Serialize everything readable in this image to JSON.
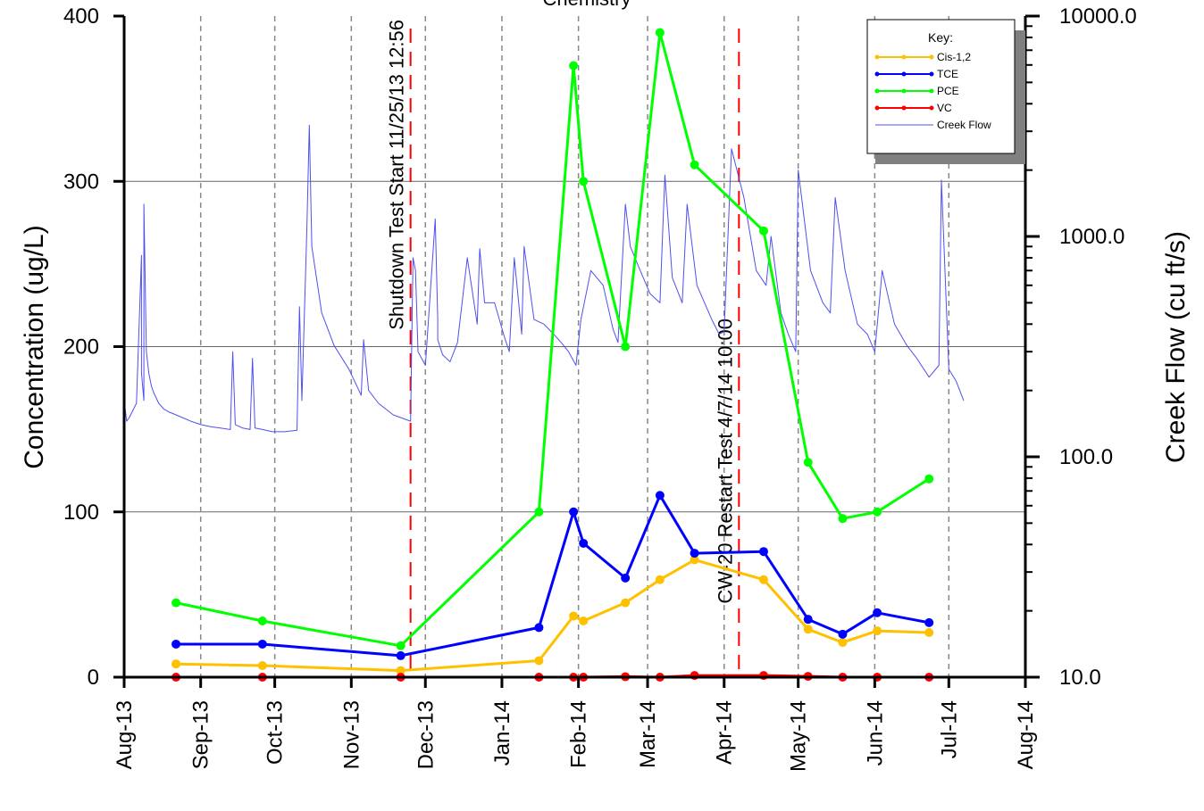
{
  "chart_data": {
    "type": "line",
    "title": "Chemistry",
    "xlabel": "",
    "ylabel": "Concentration (ug/L)",
    "y2label": "Creek Flow (cu ft/s)",
    "xlim": [
      "2013-08-01",
      "2014-08-01"
    ],
    "ylim": [
      0,
      400
    ],
    "y2lim": [
      10,
      10000
    ],
    "y2scale": "log",
    "xticks": [
      "Aug-13",
      "Sep-13",
      "Oct-13",
      "Nov-13",
      "Dec-13",
      "Jan-14",
      "Feb-14",
      "Mar-14",
      "Apr-14",
      "May-14",
      "Jun-14",
      "Jul-14",
      "Aug-14"
    ],
    "xtick_dates": [
      "2013-08-01",
      "2013-09-01",
      "2013-10-01",
      "2013-11-01",
      "2013-12-01",
      "2014-01-01",
      "2014-02-01",
      "2014-03-01",
      "2014-04-01",
      "2014-05-01",
      "2014-06-01",
      "2014-07-01",
      "2014-08-01"
    ],
    "yticks": [
      "0",
      "100",
      "200",
      "300",
      "400"
    ],
    "y2ticks": [
      "10.0",
      "100.0",
      "1000.0",
      "10000.0"
    ],
    "grid": true,
    "legend_position": "top-right",
    "legend_title": "Key:",
    "annotations": [
      {
        "label": "Shutdown Test Start 11/25/13 12:56",
        "date": "2013-11-25",
        "color": "#ff0000"
      },
      {
        "label": "CW-20 Restart  Test 4/7/14 10:00",
        "date": "2014-04-07",
        "color": "#ff0000"
      }
    ],
    "series": [
      {
        "name": "Cis-1,2",
        "axis": "left",
        "color": "#ffc000",
        "x": [
          "2013-08-22",
          "2013-09-26",
          "2013-11-21",
          "2014-01-16",
          "2014-01-30",
          "2014-02-03",
          "2014-02-20",
          "2014-03-06",
          "2014-03-20",
          "2014-04-17",
          "2014-05-05",
          "2014-05-19",
          "2014-06-02",
          "2014-06-23"
        ],
        "y": [
          8,
          7,
          4,
          10,
          37,
          34,
          45,
          59,
          71,
          59,
          29,
          21,
          28,
          27
        ]
      },
      {
        "name": "TCE",
        "axis": "left",
        "color": "#0000ff",
        "x": [
          "2013-08-22",
          "2013-09-26",
          "2013-11-21",
          "2014-01-16",
          "2014-01-30",
          "2014-02-03",
          "2014-02-20",
          "2014-03-06",
          "2014-03-20",
          "2014-04-17",
          "2014-05-05",
          "2014-05-19",
          "2014-06-02",
          "2014-06-23"
        ],
        "y": [
          20,
          20,
          13,
          30,
          100,
          81,
          60,
          110,
          75,
          76,
          35,
          26,
          39,
          33
        ]
      },
      {
        "name": "PCE",
        "axis": "left",
        "color": "#00ff00",
        "x": [
          "2013-08-22",
          "2013-09-26",
          "2013-11-21",
          "2014-01-16",
          "2014-01-30",
          "2014-02-03",
          "2014-02-20",
          "2014-03-06",
          "2014-03-20",
          "2014-04-17",
          "2014-05-05",
          "2014-05-19",
          "2014-06-02",
          "2014-06-23"
        ],
        "y": [
          45,
          34,
          19,
          100,
          370,
          300,
          200,
          390,
          310,
          270,
          130,
          96,
          100,
          120
        ]
      },
      {
        "name": "VC",
        "axis": "left",
        "color": "#ff0000",
        "x": [
          "2013-08-22",
          "2013-09-26",
          "2013-11-21",
          "2014-01-16",
          "2014-01-30",
          "2014-02-03",
          "2014-02-20",
          "2014-03-06",
          "2014-03-20",
          "2014-04-17",
          "2014-05-05",
          "2014-05-19",
          "2014-06-02",
          "2014-06-23"
        ],
        "y": [
          0,
          0,
          0,
          0,
          0,
          0,
          0.3,
          0,
          1,
          1,
          0.5,
          0,
          0,
          0
        ]
      },
      {
        "name": "Creek Flow",
        "axis": "right",
        "color": "#5050ee",
        "x": [
          "2013-08-01",
          "2013-08-01",
          "2013-08-02",
          "2013-08-03",
          "2013-08-06",
          "2013-08-08",
          "2013-08-08",
          "2013-08-09",
          "2013-08-09",
          "2013-08-10",
          "2013-08-11",
          "2013-08-12",
          "2013-08-13",
          "2013-08-15",
          "2013-08-17",
          "2013-08-19",
          "2013-08-22",
          "2013-08-25",
          "2013-08-28",
          "2013-09-01",
          "2013-09-05",
          "2013-09-09",
          "2013-09-13",
          "2013-09-14",
          "2013-09-15",
          "2013-09-18",
          "2013-09-21",
          "2013-09-22",
          "2013-09-23",
          "2013-09-26",
          "2013-09-30",
          "2013-10-05",
          "2013-10-10",
          "2013-10-11",
          "2013-10-12",
          "2013-10-14",
          "2013-10-15",
          "2013-10-16",
          "2013-10-20",
          "2013-10-25",
          "2013-10-31",
          "2013-11-05",
          "2013-11-06",
          "2013-11-08",
          "2013-11-12",
          "2013-11-18",
          "2013-11-25",
          "2013-11-26",
          "2013-11-27",
          "2013-11-28",
          "2013-12-01",
          "2013-12-05",
          "2013-12-06",
          "2013-12-06",
          "2013-12-08",
          "2013-12-11",
          "2013-12-14",
          "2013-12-18",
          "2013-12-22",
          "2013-12-23",
          "2013-12-25",
          "2013-12-29",
          "2014-01-02",
          "2014-01-04",
          "2014-01-06",
          "2014-01-09",
          "2014-01-10",
          "2014-01-14",
          "2014-01-18",
          "2014-01-22",
          "2014-01-25",
          "2014-01-28",
          "2014-01-31",
          "2014-02-02",
          "2014-02-06",
          "2014-02-11",
          "2014-02-15",
          "2014-02-17",
          "2014-02-20",
          "2014-02-22",
          "2014-02-26",
          "2014-03-02",
          "2014-03-06",
          "2014-03-08",
          "2014-03-11",
          "2014-03-15",
          "2014-03-17",
          "2014-03-21",
          "2014-03-27",
          "2014-03-30",
          "2014-04-01",
          "2014-04-04",
          "2014-04-09",
          "2014-04-14",
          "2014-04-18",
          "2014-04-20",
          "2014-04-24",
          "2014-04-27",
          "2014-04-30",
          "2014-05-01",
          "2014-05-06",
          "2014-05-11",
          "2014-05-14",
          "2014-05-16",
          "2014-05-20",
          "2014-05-25",
          "2014-05-29",
          "2014-06-01",
          "2014-06-04",
          "2014-06-09",
          "2014-06-14",
          "2014-06-18",
          "2014-06-23",
          "2014-06-27",
          "2014-06-28",
          "2014-07-01",
          "2014-07-04",
          "2014-07-07"
        ],
        "y": [
          155,
          180,
          145,
          150,
          175,
          820,
          240,
          180,
          1400,
          300,
          240,
          210,
          195,
          175,
          165,
          160,
          155,
          150,
          145,
          140,
          137,
          135,
          133,
          300,
          140,
          135,
          133,
          280,
          135,
          133,
          130,
          130,
          132,
          480,
          180,
          1100,
          3200,
          900,
          450,
          320,
          250,
          190,
          340,
          200,
          175,
          155,
          145,
          800,
          700,
          300,
          260,
          1200,
          420,
          340,
          290,
          270,
          330,
          800,
          400,
          880,
          500,
          500,
          350,
          300,
          800,
          360,
          900,
          420,
          400,
          360,
          330,
          300,
          260,
          420,
          700,
          600,
          380,
          330,
          1400,
          900,
          700,
          550,
          500,
          1900,
          650,
          500,
          1400,
          600,
          420,
          360,
          370,
          2500,
          1500,
          700,
          600,
          1000,
          450,
          360,
          300,
          2000,
          700,
          500,
          450,
          1500,
          700,
          400,
          360,
          300,
          700,
          400,
          320,
          280,
          230,
          260,
          1800,
          250,
          220,
          180
        ]
      }
    ]
  }
}
